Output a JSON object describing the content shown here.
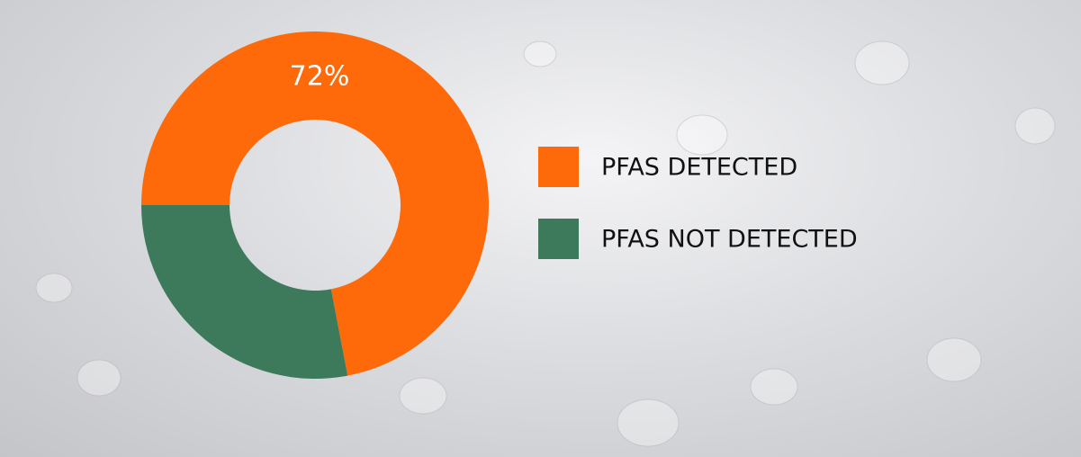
{
  "chart_data": {
    "type": "donut",
    "categories": [
      "PFAS DETECTED",
      "PFAS NOT DETECTED"
    ],
    "values": [
      72,
      28
    ],
    "value_labels": [
      "72%",
      null
    ],
    "colors": [
      "#fe6a0a",
      "#3c7a5b"
    ],
    "legend": "right"
  }
}
